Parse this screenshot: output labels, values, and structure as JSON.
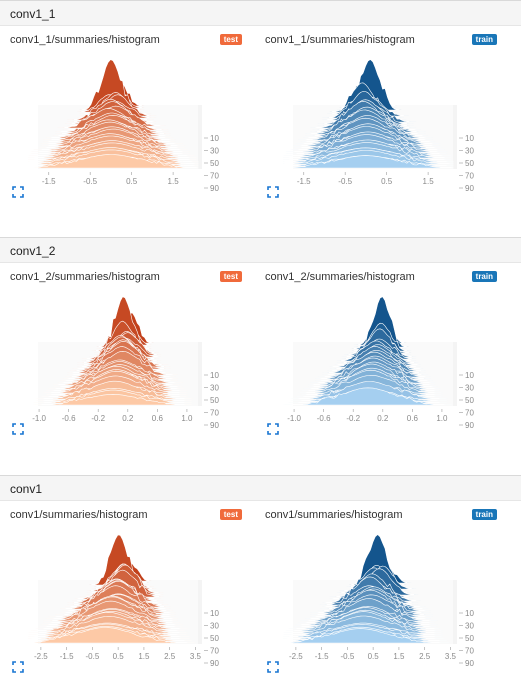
{
  "sections": [
    {
      "title": "conv1_1",
      "cards": [
        {
          "title": "conv1_1/summaries/histogram",
          "run": "test",
          "color": "orange",
          "xticks": [
            "-1.5",
            "-0.5",
            "0.5",
            "1.5"
          ],
          "xrange": [
            -2.0,
            2.1
          ],
          "spread": 0.95,
          "peak": 0.05
        },
        {
          "title": "conv1_1/summaries/histogram",
          "run": "train",
          "color": "blue",
          "xticks": [
            "-1.5",
            "-0.5",
            "0.5",
            "1.5"
          ],
          "xrange": [
            -2.0,
            2.1
          ],
          "spread": 0.95,
          "peak": 0.05
        }
      ]
    },
    {
      "title": "conv1_2",
      "cards": [
        {
          "title": "conv1_2/summaries/histogram",
          "run": "test",
          "color": "orange",
          "xticks": [
            "-1.0",
            "-0.6",
            "-0.2",
            "0.2",
            "0.6",
            "1.0"
          ],
          "xrange": [
            -1.15,
            1.15
          ],
          "spread": 0.45,
          "peak": 0.2
        },
        {
          "title": "conv1_2/summaries/histogram",
          "run": "train",
          "color": "blue",
          "xticks": [
            "-1.0",
            "-0.6",
            "-0.2",
            "0.2",
            "0.6",
            "1.0"
          ],
          "xrange": [
            -1.15,
            1.15
          ],
          "spread": 0.45,
          "peak": 0.2
        }
      ]
    },
    {
      "title": "conv1",
      "cards": [
        {
          "title": "conv1/summaries/histogram",
          "run": "test",
          "color": "orange",
          "xticks": [
            "-2.5",
            "-1.5",
            "-0.5",
            "0.5",
            "1.5",
            "2.5",
            "3.5"
          ],
          "xrange": [
            -3.0,
            3.6
          ],
          "spread": 1.4,
          "peak": 0.8
        },
        {
          "title": "conv1/summaries/histogram",
          "run": "train",
          "color": "blue",
          "xticks": [
            "-2.5",
            "-1.5",
            "-0.5",
            "0.5",
            "1.5",
            "2.5",
            "3.5"
          ],
          "xrange": [
            -3.0,
            3.6
          ],
          "spread": 1.4,
          "peak": 0.8
        }
      ]
    }
  ],
  "step_ticks": [
    "10",
    "30",
    "50",
    "70",
    "90"
  ],
  "colors": {
    "orange_light": "#fdc9a6",
    "orange_dark": "#c2401a",
    "blue_light": "#a5cff0",
    "blue_dark": "#0a4d86",
    "expand_icon": "#1976d2"
  },
  "icons": {
    "expand": "expand-icon"
  }
}
